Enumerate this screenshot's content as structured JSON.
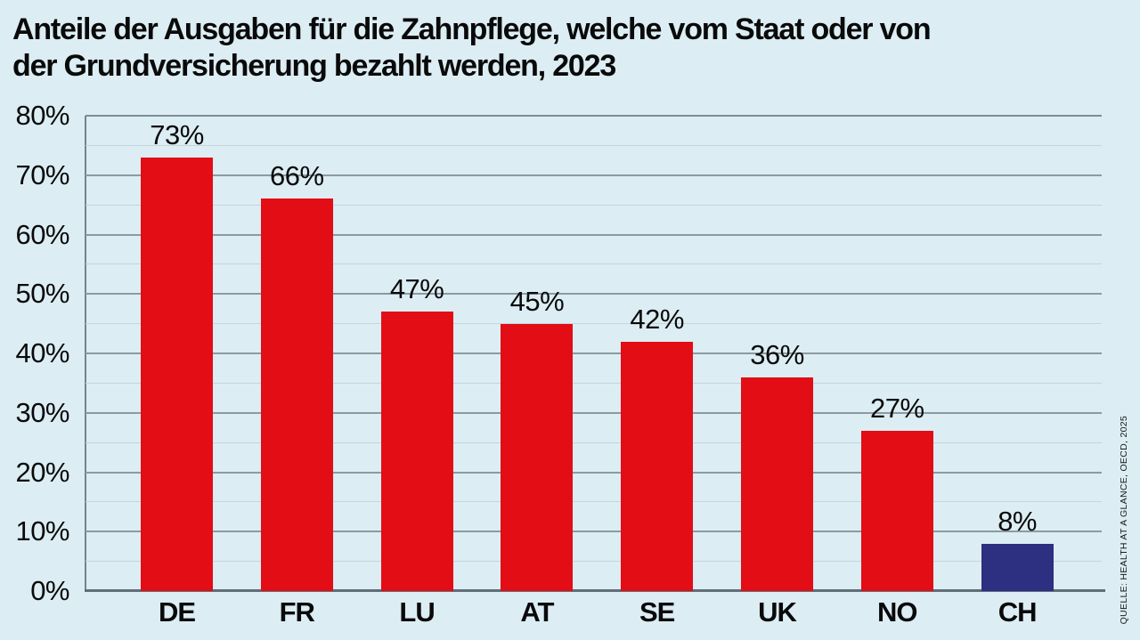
{
  "title": {
    "line1": "Anteile der Ausgaben für die Zahnpflege, welche vom Staat oder von",
    "line2": "der Grundversicherung bezahlt werden, 2023"
  },
  "source": "QUELLE: HEALTH AT A GLANCE, OECD, 2025",
  "chart_data": {
    "type": "bar",
    "title": "Anteile der Ausgaben für die Zahnpflege, welche vom Staat oder von der Grundversicherung bezahlt werden, 2023",
    "categories": [
      "DE",
      "FR",
      "LU",
      "AT",
      "SE",
      "UK",
      "NO",
      "CH"
    ],
    "values": [
      73,
      66,
      47,
      45,
      42,
      36,
      27,
      8
    ],
    "value_labels": [
      "73%",
      "66%",
      "47%",
      "45%",
      "42%",
      "36%",
      "27%",
      "8%"
    ],
    "xlabel": "",
    "ylabel": "",
    "ylim": [
      0,
      80
    ],
    "y_tick_labels": [
      "0%",
      "10%",
      "20%",
      "30%",
      "40%",
      "50%",
      "60%",
      "70%",
      "80%"
    ],
    "y_major_step": 10,
    "y_minor_step": 5,
    "grid": "on",
    "legend": "none",
    "colors": {
      "bar_default": "#e20d15",
      "bar_highlight": "#2d2f80",
      "highlight_category": "CH",
      "background": "#dcedf4",
      "grid_major": "#8d9aa1",
      "grid_minor": "#c2d6dd",
      "axis": "#5f6e78",
      "text": "#0a0a0a"
    },
    "source": "QUELLE: HEALTH AT A GLANCE, OECD, 2025"
  }
}
